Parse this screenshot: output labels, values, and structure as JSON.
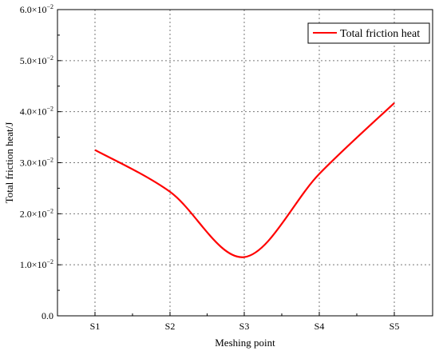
{
  "chart_data": {
    "type": "line",
    "categories": [
      "S1",
      "S2",
      "S3",
      "S4",
      "S5"
    ],
    "series": [
      {
        "name": "Total friction heat",
        "values": [
          0.0325,
          0.0243,
          0.0115,
          0.0278,
          0.0417
        ],
        "color": "#ff0000"
      }
    ],
    "xlabel": "Meshing point",
    "ylabel": "Total friction heat/J",
    "ylim": [
      0,
      0.06
    ],
    "yticks": [
      {
        "value": 0,
        "mantissa": "0.0",
        "exp": ""
      },
      {
        "value": 0.01,
        "mantissa": "1.0",
        "exp": "−2"
      },
      {
        "value": 0.02,
        "mantissa": "2.0",
        "exp": "−2"
      },
      {
        "value": 0.03,
        "mantissa": "3.0",
        "exp": "−2"
      },
      {
        "value": 0.04,
        "mantissa": "4.0",
        "exp": "−2"
      },
      {
        "value": 0.05,
        "mantissa": "5.0",
        "exp": "−2"
      },
      {
        "value": 0.06,
        "mantissa": "6.0",
        "exp": "−2"
      }
    ],
    "grid": true,
    "legend_position": "top-right"
  }
}
